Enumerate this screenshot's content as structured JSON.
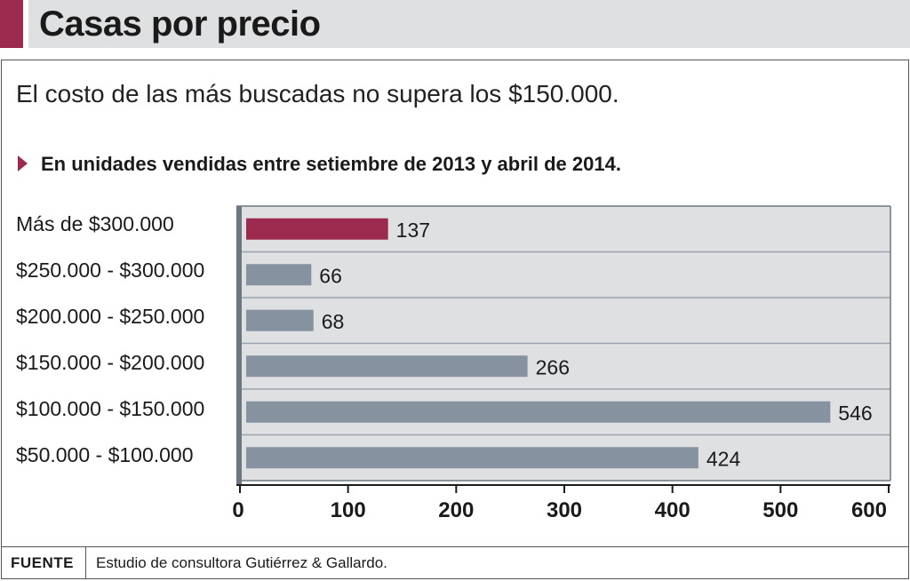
{
  "header": {
    "title": "Casas por precio",
    "accent_color": "#9c2a4e",
    "bg_color": "#dfe0e2"
  },
  "subtitle": "El costo de las más buscadas no supera los $150.000.",
  "note": "En unidades vendidas entre setiembre de 2013 y abril de 2014.",
  "footer": {
    "source_label": "FUENTE",
    "source_text": "Estudio de consultora Gutiérrez & Gallardo."
  },
  "chart_data": {
    "type": "bar",
    "orientation": "horizontal",
    "categories": [
      "Más de $300.000",
      "$250.000 - $300.000",
      "$200.000 - $250.000",
      "$150.000 - $200.000",
      "$100.000 - $150.000",
      "$50.000 - $100.000"
    ],
    "values": [
      137,
      66,
      68,
      266,
      546,
      424
    ],
    "value_labels": [
      "137",
      "66",
      "68",
      "266",
      "546",
      "424"
    ],
    "x_ticks": [
      "0",
      "100",
      "200",
      "300",
      "400",
      "500",
      "600"
    ],
    "xlim": [
      0,
      600
    ],
    "highlight_index": 0,
    "colors": {
      "highlight": "#9c2a4e",
      "bar": "#86929f",
      "plot_bg": "#dfe0e2",
      "axis": "#6d7782",
      "grid": "#ffffff"
    }
  }
}
